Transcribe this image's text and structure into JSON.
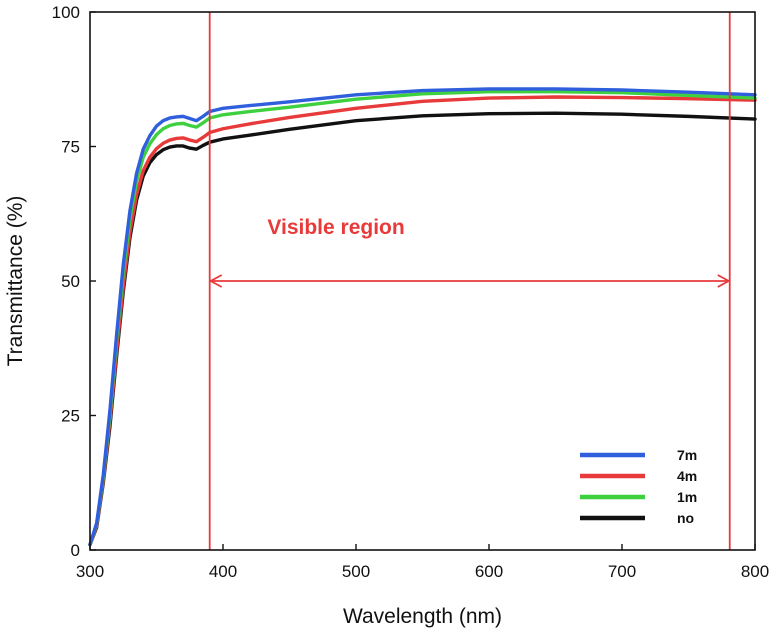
{
  "chart_data": {
    "type": "line",
    "title": "",
    "xlabel": "Wavelength (nm)",
    "ylabel": "Transmittance (%)",
    "xlim": [
      300,
      800
    ],
    "ylim": [
      0,
      100
    ],
    "xticks": [
      300,
      400,
      500,
      600,
      700,
      800
    ],
    "yticks": [
      0,
      25,
      50,
      75,
      100
    ],
    "grid": false,
    "legend_position": "bottom-right",
    "series": [
      {
        "name": "7m",
        "color": "#2f5fdc",
        "x": [
          300,
          305,
          310,
          315,
          320,
          325,
          330,
          335,
          340,
          345,
          350,
          355,
          360,
          365,
          370,
          375,
          380,
          385,
          390,
          400,
          420,
          450,
          500,
          550,
          600,
          650,
          700,
          750,
          800
        ],
        "y": [
          1,
          5,
          14,
          26,
          40,
          53,
          63,
          70,
          74.5,
          77,
          78.8,
          79.8,
          80.3,
          80.5,
          80.6,
          80.2,
          79.8,
          80.6,
          81.5,
          82.1,
          82.6,
          83.3,
          84.6,
          85.4,
          85.7,
          85.7,
          85.5,
          85.1,
          84.6
        ]
      },
      {
        "name": "4m",
        "color": "#e83a3a",
        "x": [
          300,
          305,
          310,
          315,
          320,
          325,
          330,
          335,
          340,
          345,
          350,
          355,
          360,
          365,
          370,
          375,
          380,
          385,
          390,
          400,
          420,
          450,
          500,
          550,
          600,
          650,
          700,
          750,
          800
        ],
        "y": [
          1,
          4.5,
          13,
          24,
          37,
          49,
          59,
          66,
          70.5,
          73,
          74.6,
          75.6,
          76.2,
          76.5,
          76.6,
          76.2,
          75.9,
          76.7,
          77.6,
          78.3,
          79.2,
          80.4,
          82.1,
          83.4,
          84,
          84.2,
          84.1,
          83.9,
          83.6
        ]
      },
      {
        "name": "1m",
        "color": "#3fd03f",
        "x": [
          300,
          305,
          310,
          315,
          320,
          325,
          330,
          335,
          340,
          345,
          350,
          355,
          360,
          365,
          370,
          375,
          380,
          385,
          390,
          400,
          420,
          450,
          500,
          550,
          600,
          650,
          700,
          750,
          800
        ],
        "y": [
          1,
          4.8,
          13.5,
          25,
          39,
          51.5,
          61.5,
          68.5,
          73,
          75.5,
          77.2,
          78.3,
          78.9,
          79.2,
          79.3,
          78.9,
          78.6,
          79.4,
          80.3,
          80.9,
          81.5,
          82.3,
          83.8,
          84.8,
          85.2,
          85.2,
          85,
          84.5,
          84
        ]
      },
      {
        "name": "no",
        "color": "#111111",
        "x": [
          300,
          305,
          310,
          315,
          320,
          325,
          330,
          335,
          340,
          345,
          350,
          355,
          360,
          365,
          370,
          375,
          380,
          385,
          390,
          400,
          420,
          450,
          500,
          550,
          600,
          650,
          700,
          750,
          800
        ],
        "y": [
          1,
          4.2,
          12.5,
          23,
          36,
          48,
          58,
          65,
          69.5,
          72,
          73.5,
          74.4,
          74.9,
          75.1,
          75.1,
          74.7,
          74.5,
          75.2,
          75.8,
          76.4,
          77.1,
          78.2,
          79.8,
          80.7,
          81.1,
          81.2,
          81,
          80.6,
          80.1
        ]
      }
    ],
    "vertical_lines": [
      {
        "x": 390,
        "color": "#e83a3a"
      },
      {
        "x": 781,
        "color": "#e83a3a"
      }
    ],
    "annotation": {
      "text": "Visible region",
      "color": "#e83a3a",
      "x": 485,
      "y": 60,
      "arrow_from": 390,
      "arrow_to": 781,
      "arrow_y": 50
    }
  }
}
